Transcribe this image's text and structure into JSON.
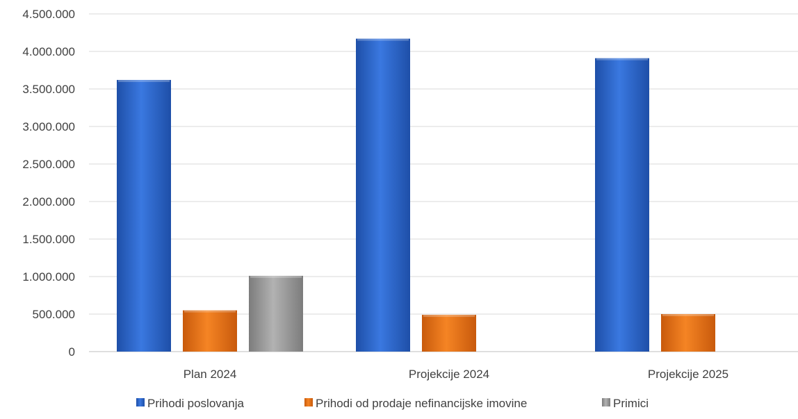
{
  "chart_data": {
    "type": "bar",
    "title": "",
    "xlabel": "",
    "ylabel": "",
    "categories": [
      "Plan 2024",
      "Projekcije 2024",
      "Projekcije 2025"
    ],
    "series": [
      {
        "name": "Prihodi poslovanja",
        "values": [
          3620000,
          4170000,
          3910000
        ],
        "color": "#2F6BD6"
      },
      {
        "name": "Prihodi od prodaje nefinancijske imovine",
        "values": [
          550000,
          490000,
          500000
        ],
        "color": "#F07A1A"
      },
      {
        "name": "Primici",
        "values": [
          1010000,
          0,
          0
        ],
        "color": "#A0A0A0"
      }
    ],
    "ylim": [
      0,
      4500000
    ],
    "yticks": [
      0,
      500000,
      1000000,
      1500000,
      2000000,
      2500000,
      3000000,
      3500000,
      4000000,
      4500000
    ],
    "ytick_labels": [
      "0",
      "500.000",
      "1.000.000",
      "1.500.000",
      "2.000.000",
      "2.500.000",
      "3.000.000",
      "3.500.000",
      "4.000.000",
      "4.500.000"
    ],
    "grid": true,
    "legend_position": "bottom"
  }
}
